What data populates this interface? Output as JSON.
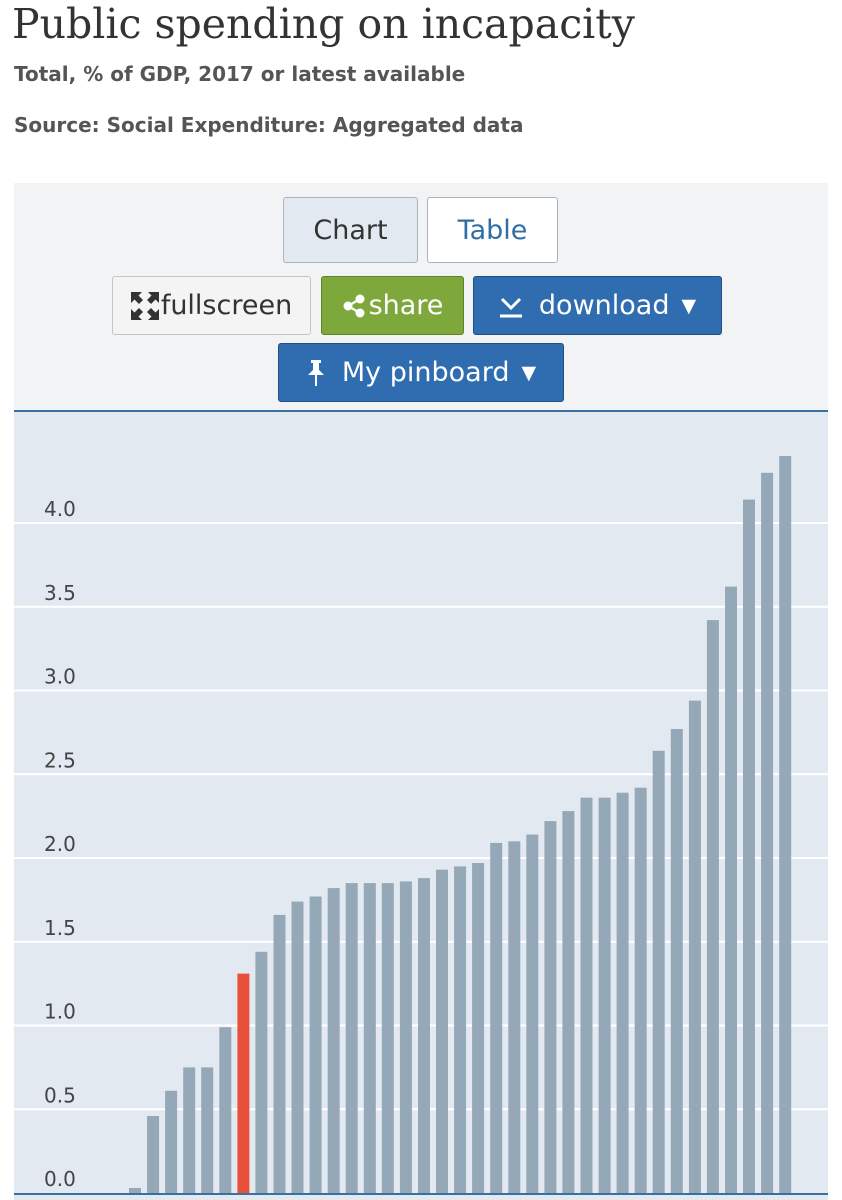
{
  "header": {
    "title": "Public spending on incapacity",
    "subtitle": "Total, % of GDP, 2017 or latest available",
    "source": "Source: Social Expenditure: Aggregated data"
  },
  "toolbar": {
    "chart_label": "Chart",
    "table_label": "Table",
    "fullscreen_label": "fullscreen",
    "share_label": "share",
    "download_label": "download",
    "pinboard_label": "My pinboard",
    "dropdown_glyph": "▼"
  },
  "colors": {
    "bar": "#95a8b8",
    "highlight": "#e8503a",
    "background": "#e3e9f0",
    "grid": "#ffffff",
    "axis": "#3a6f9f"
  },
  "chart_data": {
    "type": "bar",
    "title": "",
    "xlabel": "",
    "ylabel": "",
    "ylim": [
      0,
      4.7
    ],
    "y_ticks": [
      0.0,
      0.5,
      1.0,
      1.5,
      2.0,
      2.5,
      3.0,
      3.5,
      4.0
    ],
    "y_tick_labels": [
      "0.0",
      "0.5",
      "1.0",
      "1.5",
      "2.0",
      "2.5",
      "3.0",
      "3.5",
      "4.0"
    ],
    "grid": true,
    "highlight_index": 6,
    "values": [
      0.03,
      0.46,
      0.61,
      0.75,
      0.75,
      0.99,
      1.31,
      1.44,
      1.66,
      1.74,
      1.77,
      1.82,
      1.85,
      1.85,
      1.85,
      1.86,
      1.88,
      1.93,
      1.95,
      1.97,
      2.09,
      2.1,
      2.14,
      2.22,
      2.28,
      2.36,
      2.36,
      2.39,
      2.42,
      2.64,
      2.77,
      2.94,
      3.42,
      3.62,
      4.14,
      4.3,
      4.4
    ]
  }
}
